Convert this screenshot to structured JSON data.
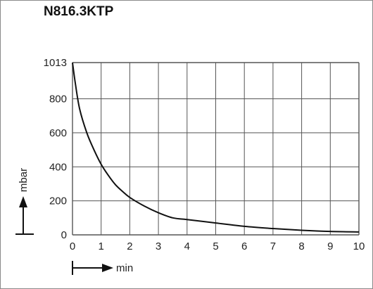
{
  "chart_data": {
    "type": "line",
    "title": "N816.3KTP",
    "xlabel": "min",
    "ylabel": "mbar",
    "xlim": [
      0,
      10
    ],
    "ylim": [
      0,
      1013
    ],
    "x_ticks": [
      "0",
      "1",
      "2",
      "3",
      "4",
      "5",
      "6",
      "7",
      "8",
      "9",
      "10"
    ],
    "y_ticks": [
      "0",
      "200",
      "400",
      "600",
      "800",
      "1013"
    ],
    "y_tick_values": [
      0,
      200,
      400,
      600,
      800,
      1013
    ],
    "grid": true,
    "series": [
      {
        "x": [
          0,
          0.1,
          0.25,
          0.5,
          0.75,
          1,
          1.25,
          1.5,
          1.75,
          2,
          2.5,
          3,
          3.5,
          4,
          5,
          6,
          7,
          8,
          9,
          10
        ],
        "y": [
          1013,
          890,
          740,
          600,
          500,
          415,
          350,
          295,
          255,
          220,
          170,
          130,
          100,
          90,
          70,
          50,
          37,
          27,
          20,
          17
        ]
      }
    ],
    "line_color": "#111111",
    "grid_color": "#555555"
  }
}
